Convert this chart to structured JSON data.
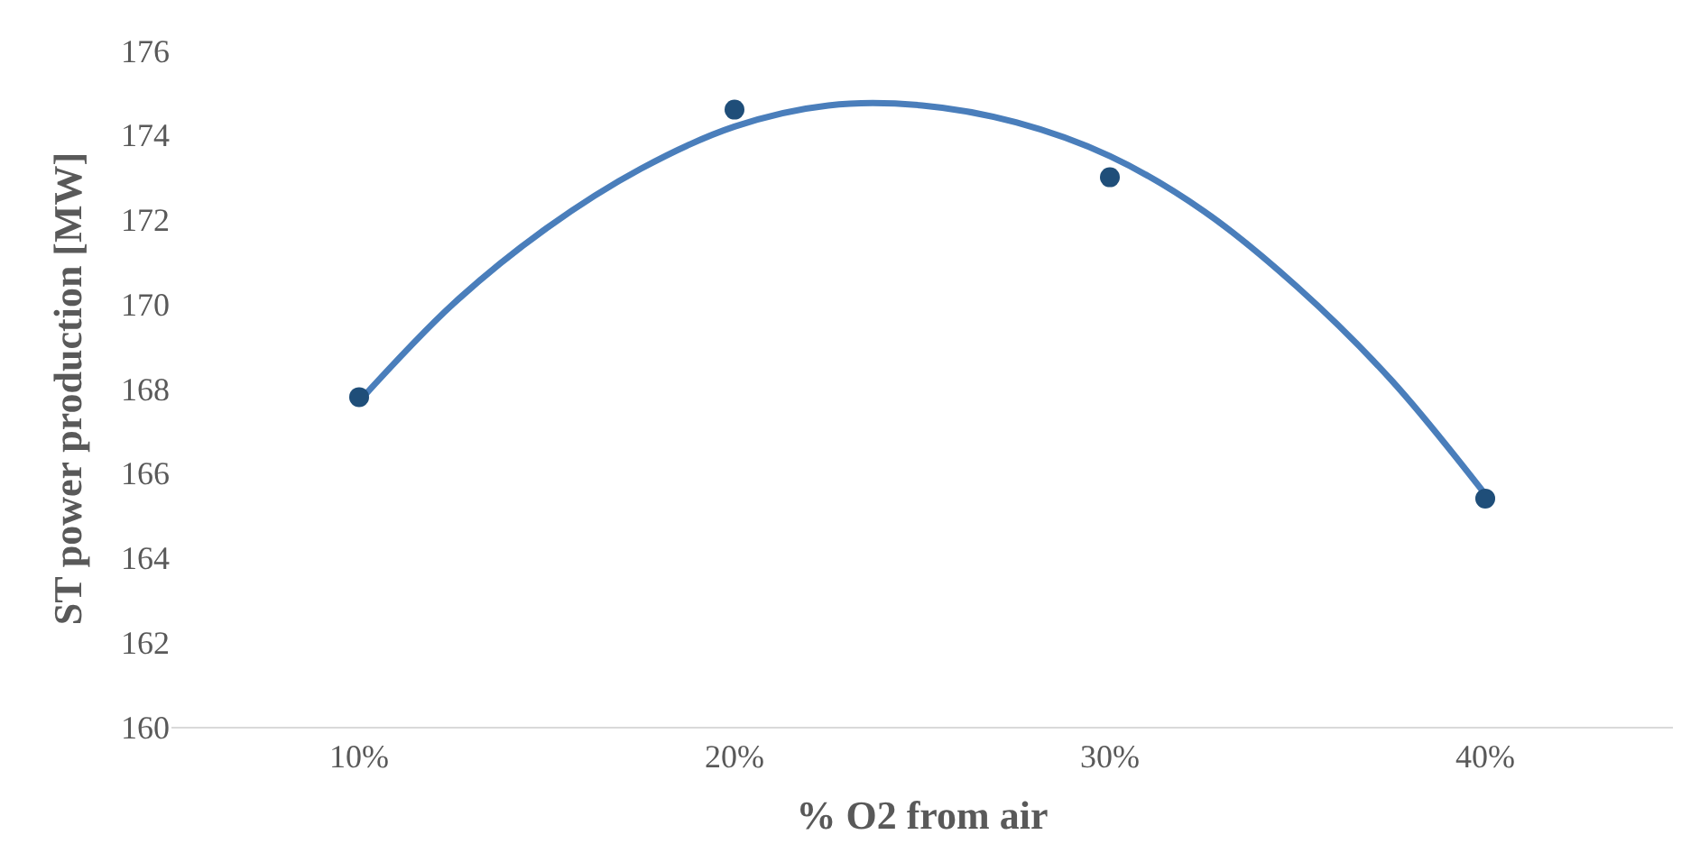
{
  "chart_data": {
    "type": "scatter",
    "xlabel": "% O2 from air",
    "ylabel": "ST power production [MW]",
    "xlim": [
      5,
      45
    ],
    "xticks": [
      {
        "value": 10,
        "label": "10%"
      },
      {
        "value": 20,
        "label": "20%"
      },
      {
        "value": 30,
        "label": "30%"
      },
      {
        "value": 40,
        "label": "40%"
      }
    ],
    "ylim": [
      160,
      176
    ],
    "yticks": [
      160,
      162,
      164,
      166,
      168,
      170,
      172,
      174,
      176
    ],
    "grid": false,
    "series": [
      {
        "type": "line",
        "marker": "none",
        "color": "#4a7ebb",
        "x": [
          10,
          12.5,
          15,
          17.5,
          20,
          22.5,
          25,
          27.5,
          30,
          32.5,
          35,
          37.5,
          40
        ],
        "values": [
          167.7,
          170.0,
          171.8,
          173.2,
          174.2,
          174.7,
          174.7,
          174.3,
          173.5,
          172.2,
          170.4,
          168.2,
          165.5
        ]
      },
      {
        "marker": "circle",
        "color": "#1f4e79",
        "x": [
          10,
          20,
          30,
          40
        ],
        "values": [
          167.8,
          174.6,
          173.0,
          165.4
        ]
      }
    ]
  }
}
